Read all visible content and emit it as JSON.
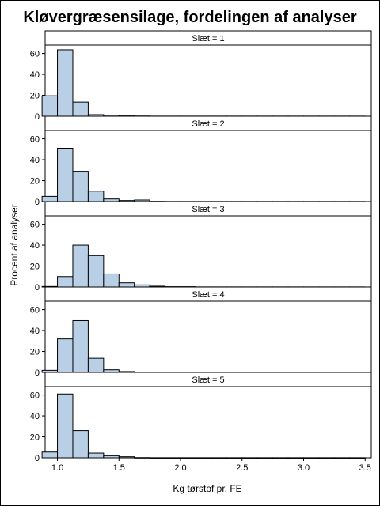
{
  "chart_data": {
    "type": "bar",
    "title": "Kløvergræsensilage, fordelingen af analyser",
    "xlabel": "Kg tørstof pr. FE",
    "ylabel": "Procent af analyser",
    "xlim": [
      0.9,
      3.55
    ],
    "ylim": [
      0,
      68
    ],
    "x_ticks": [
      "1.0",
      "1.5",
      "2.0",
      "2.5",
      "3.0",
      "3.5"
    ],
    "y_ticks": [
      "0",
      "20",
      "40",
      "60"
    ],
    "bin_width": 0.125,
    "bar_color": "#b9cfe6",
    "panels": [
      {
        "label": "Slæt = 1",
        "bins": [
          {
            "x": 0.9375,
            "y": 19.5
          },
          {
            "x": 1.0625,
            "y": 63.5
          },
          {
            "x": 1.1875,
            "y": 13.5
          },
          {
            "x": 1.3125,
            "y": 1.5
          },
          {
            "x": 1.4375,
            "y": 1.0
          },
          {
            "x": 1.5625,
            "y": 0.3
          },
          {
            "x": 1.6875,
            "y": 0.2
          },
          {
            "x": 1.8125,
            "y": 0.1
          },
          {
            "x": 1.9375,
            "y": 0.1
          },
          {
            "x": 2.0625,
            "y": 0.1
          },
          {
            "x": 2.1875,
            "y": 0.1
          },
          {
            "x": 2.3125,
            "y": 0.1
          },
          {
            "x": 2.4375,
            "y": 0.1
          },
          {
            "x": 2.5625,
            "y": 0.1
          },
          {
            "x": 2.6875,
            "y": 0.1
          },
          {
            "x": 2.8125,
            "y": 0.1
          },
          {
            "x": 2.9375,
            "y": 0.1
          },
          {
            "x": 3.0625,
            "y": 0.1
          },
          {
            "x": 3.1875,
            "y": 0.1
          },
          {
            "x": 3.3125,
            "y": 0.1
          },
          {
            "x": 3.4375,
            "y": 0.1
          }
        ]
      },
      {
        "label": "Slæt = 2",
        "bins": [
          {
            "x": 0.9375,
            "y": 5.0
          },
          {
            "x": 1.0625,
            "y": 51.0
          },
          {
            "x": 1.1875,
            "y": 29.0
          },
          {
            "x": 1.3125,
            "y": 10.0
          },
          {
            "x": 1.4375,
            "y": 2.5
          },
          {
            "x": 1.5625,
            "y": 1.0
          },
          {
            "x": 1.6875,
            "y": 1.5
          },
          {
            "x": 1.8125,
            "y": 0.2
          },
          {
            "x": 1.9375,
            "y": 0.1
          },
          {
            "x": 2.0625,
            "y": 0.1
          },
          {
            "x": 2.1875,
            "y": 0.1
          },
          {
            "x": 2.3125,
            "y": 0.1
          },
          {
            "x": 2.4375,
            "y": 0.1
          },
          {
            "x": 2.5625,
            "y": 0.1
          },
          {
            "x": 2.6875,
            "y": 0.1
          },
          {
            "x": 2.8125,
            "y": 0.1
          },
          {
            "x": 2.9375,
            "y": 0.1
          },
          {
            "x": 3.0625,
            "y": 0.1
          },
          {
            "x": 3.1875,
            "y": 0.1
          },
          {
            "x": 3.3125,
            "y": 0.1
          },
          {
            "x": 3.4375,
            "y": 0.1
          }
        ]
      },
      {
        "label": "Slæt = 3",
        "bins": [
          {
            "x": 0.9375,
            "y": 0.5
          },
          {
            "x": 1.0625,
            "y": 10.0
          },
          {
            "x": 1.1875,
            "y": 40.0
          },
          {
            "x": 1.3125,
            "y": 30.0
          },
          {
            "x": 1.4375,
            "y": 12.5
          },
          {
            "x": 1.5625,
            "y": 4.0
          },
          {
            "x": 1.6875,
            "y": 2.0
          },
          {
            "x": 1.8125,
            "y": 0.8
          },
          {
            "x": 1.9375,
            "y": 0.3
          },
          {
            "x": 2.0625,
            "y": 0.3
          },
          {
            "x": 2.1875,
            "y": 0.1
          },
          {
            "x": 2.3125,
            "y": 0.1
          },
          {
            "x": 2.4375,
            "y": 0.1
          },
          {
            "x": 2.5625,
            "y": 0.1
          },
          {
            "x": 2.6875,
            "y": 0.1
          },
          {
            "x": 2.8125,
            "y": 0.1
          },
          {
            "x": 2.9375,
            "y": 0.1
          },
          {
            "x": 3.0625,
            "y": 0.1
          },
          {
            "x": 3.1875,
            "y": 0.1
          },
          {
            "x": 3.3125,
            "y": 0.1
          },
          {
            "x": 3.4375,
            "y": 0.1
          }
        ]
      },
      {
        "label": "Slæt = 4",
        "bins": [
          {
            "x": 0.9375,
            "y": 2.0
          },
          {
            "x": 1.0625,
            "y": 32.0
          },
          {
            "x": 1.1875,
            "y": 49.5
          },
          {
            "x": 1.3125,
            "y": 13.5
          },
          {
            "x": 1.4375,
            "y": 2.5
          },
          {
            "x": 1.5625,
            "y": 0.8
          },
          {
            "x": 1.6875,
            "y": 0.2
          },
          {
            "x": 1.8125,
            "y": 0.1
          },
          {
            "x": 1.9375,
            "y": 0.1
          },
          {
            "x": 2.0625,
            "y": 0.1
          },
          {
            "x": 2.1875,
            "y": 0.1
          },
          {
            "x": 2.3125,
            "y": 0.1
          },
          {
            "x": 2.4375,
            "y": 0.1
          },
          {
            "x": 2.5625,
            "y": 0.1
          },
          {
            "x": 2.6875,
            "y": 0.1
          },
          {
            "x": 2.8125,
            "y": 0.1
          },
          {
            "x": 2.9375,
            "y": 0.1
          },
          {
            "x": 3.0625,
            "y": 0.1
          },
          {
            "x": 3.1875,
            "y": 0.1
          },
          {
            "x": 3.3125,
            "y": 0.1
          },
          {
            "x": 3.4375,
            "y": 0.1
          }
        ]
      },
      {
        "label": "Slæt = 5",
        "bins": [
          {
            "x": 0.9375,
            "y": 5.5
          },
          {
            "x": 1.0625,
            "y": 61.0
          },
          {
            "x": 1.1875,
            "y": 26.0
          },
          {
            "x": 1.3125,
            "y": 4.5
          },
          {
            "x": 1.4375,
            "y": 2.0
          },
          {
            "x": 1.5625,
            "y": 1.0
          },
          {
            "x": 1.6875,
            "y": 0.2
          },
          {
            "x": 1.8125,
            "y": 0.1
          },
          {
            "x": 1.9375,
            "y": 0.1
          },
          {
            "x": 2.0625,
            "y": 0.1
          },
          {
            "x": 2.1875,
            "y": 0.1
          },
          {
            "x": 2.3125,
            "y": 0.1
          },
          {
            "x": 2.4375,
            "y": 0.1
          },
          {
            "x": 2.5625,
            "y": 0.1
          },
          {
            "x": 2.6875,
            "y": 0.1
          },
          {
            "x": 2.8125,
            "y": 0.1
          },
          {
            "x": 2.9375,
            "y": 0.1
          },
          {
            "x": 3.0625,
            "y": 0.1
          },
          {
            "x": 3.1875,
            "y": 0.1
          },
          {
            "x": 3.3125,
            "y": 0.1
          },
          {
            "x": 3.4375,
            "y": 0.1
          }
        ]
      }
    ]
  }
}
